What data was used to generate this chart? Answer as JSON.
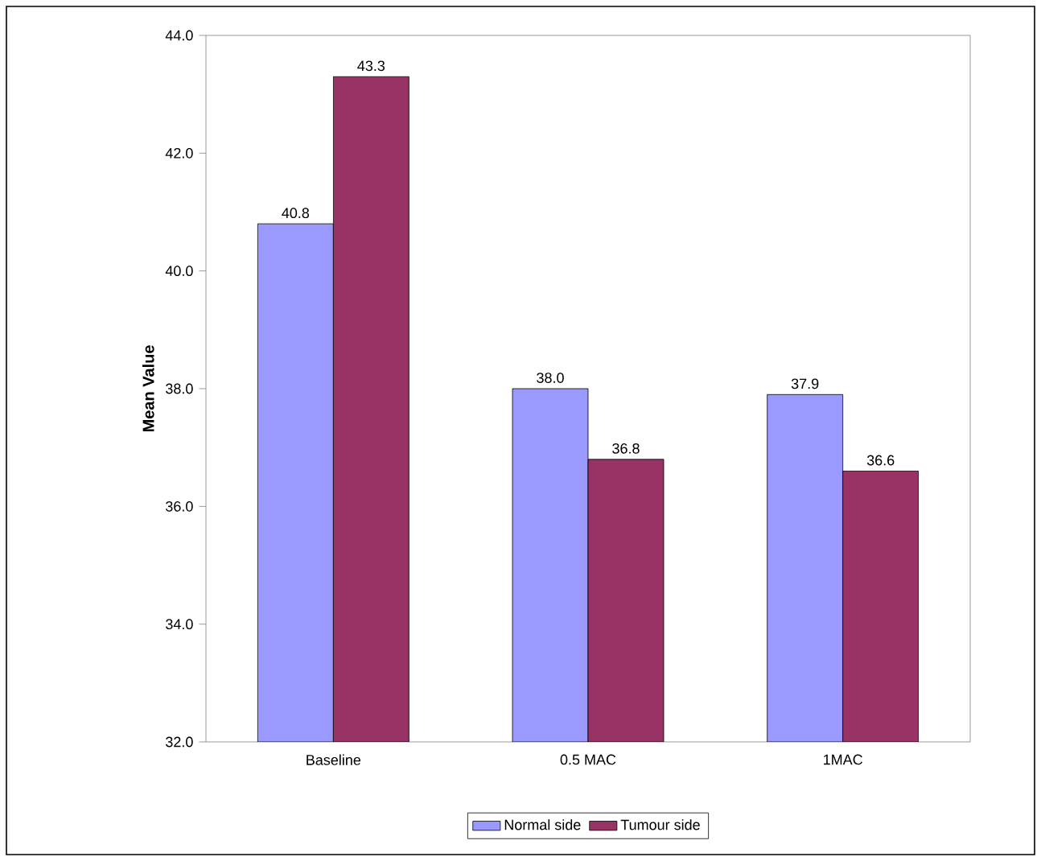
{
  "chart_data": {
    "type": "bar",
    "ylabel": "Mean Value",
    "categories": [
      "Baseline",
      "0.5 MAC",
      "1MAC"
    ],
    "series": [
      {
        "name": "Normal side",
        "color": "#9999ff",
        "values": [
          40.8,
          38.0,
          37.9
        ],
        "value_labels": [
          "40.8",
          "38.0",
          "37.9"
        ]
      },
      {
        "name": "Tumour side",
        "color": "#993366",
        "values": [
          43.3,
          36.8,
          36.6
        ],
        "value_labels": [
          "43.3",
          "36.8",
          "36.6"
        ]
      }
    ],
    "ylim": [
      32,
      44
    ],
    "yticks": [
      {
        "value": 32,
        "label": "32.0"
      },
      {
        "value": 34,
        "label": "34.0"
      },
      {
        "value": 36,
        "label": "36.0"
      },
      {
        "value": 38,
        "label": "38.0"
      },
      {
        "value": 40,
        "label": "40.0"
      },
      {
        "value": 42,
        "label": "42.0"
      },
      {
        "value": 44,
        "label": "44.0"
      }
    ],
    "grid": false,
    "legend": "bottom"
  }
}
